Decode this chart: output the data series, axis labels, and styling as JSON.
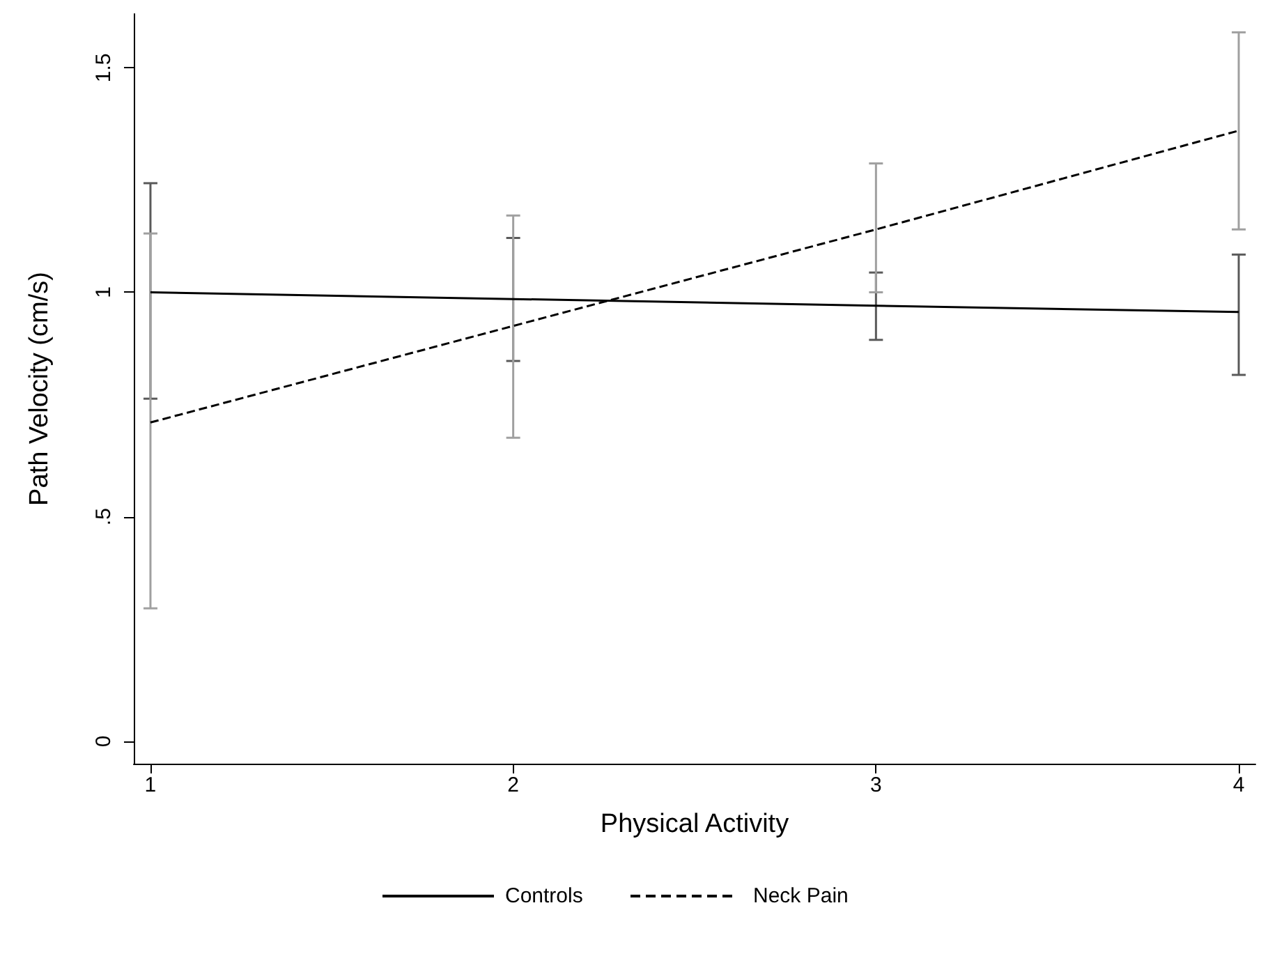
{
  "chart_data": {
    "type": "line",
    "xlabel": "Physical Activity",
    "ylabel": "Path Velocity (cm/s)",
    "x": [
      1,
      2,
      3,
      4
    ],
    "series": [
      {
        "name": "Controls",
        "color": "#000000",
        "line_style": "solid",
        "values": [
          1.0,
          0.985,
          0.97,
          0.956
        ],
        "errors": [
          [
            0.763,
            1.243
          ],
          [
            0.847,
            1.121
          ],
          [
            0.894,
            1.044
          ],
          [
            0.816,
            1.084
          ]
        ]
      },
      {
        "name": "Neck Pain",
        "color": "#000000",
        "line_style": "dashed",
        "values": [
          0.71,
          0.925,
          1.14,
          1.36
        ],
        "errors": [
          [
            0.296,
            1.131
          ],
          [
            0.676,
            1.171
          ],
          [
            1.0,
            1.287
          ],
          [
            1.14,
            1.579
          ]
        ]
      }
    ],
    "xlim": [
      0.954,
      4.046
    ],
    "xticks": [
      1,
      2,
      3,
      4
    ],
    "ylim": [
      -0.05,
      1.62
    ],
    "yticks": [
      0,
      {
        "value": 0.5,
        "label": ".5"
      },
      1,
      1.5
    ],
    "grid": false,
    "legend": "bottom",
    "marker": "none"
  }
}
